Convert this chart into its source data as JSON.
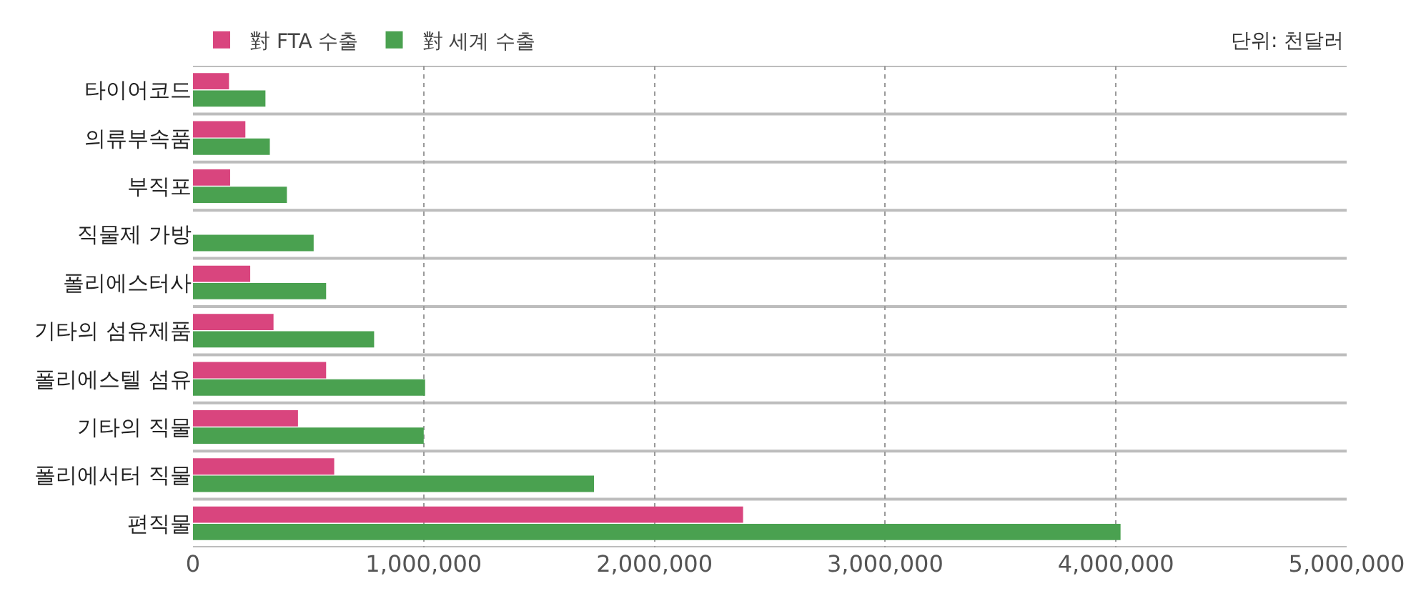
{
  "chart_data": {
    "type": "bar",
    "orientation": "horizontal",
    "categories": [
      "타이어코드",
      "의류부속품",
      "부직포",
      "직물제 가방",
      "폴리에스터사",
      "기타의 섬유제품",
      "폴리에스텔 섬유",
      "기타의 직물",
      "폴리에서터 직물",
      "편직물"
    ],
    "series": [
      {
        "name": "對 FTA 수출",
        "color": "#d9457e",
        "values": [
          156000,
          227000,
          161000,
          null,
          248000,
          349000,
          577000,
          455000,
          612000,
          2384000
        ]
      },
      {
        "name": "對 세계 수출",
        "color": "#4aa150",
        "values": [
          314000,
          333000,
          407000,
          523000,
          577000,
          785000,
          1006000,
          1000000,
          1738000,
          4020000
        ]
      }
    ],
    "xlim": [
      0,
      5000000
    ],
    "xticks": [
      {
        "value": 0,
        "label": "0"
      },
      {
        "value": 1000000,
        "label": "1,000,000"
      },
      {
        "value": 2000000,
        "label": "2,000,000"
      },
      {
        "value": 3000000,
        "label": "3,000,000"
      },
      {
        "value": 4000000,
        "label": "4,000,000"
      },
      {
        "value": 5000000,
        "label": "5,000,000"
      }
    ],
    "annotations": [
      "단위: 천달러"
    ],
    "grid": true,
    "legend": "top left"
  }
}
